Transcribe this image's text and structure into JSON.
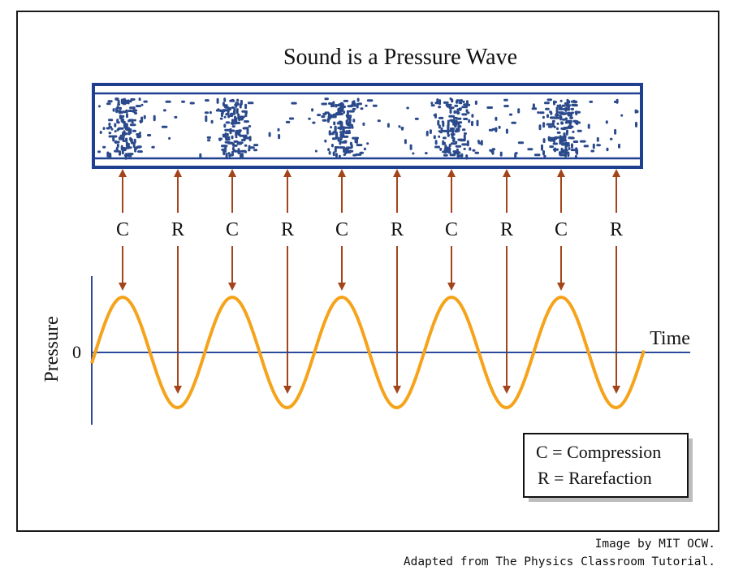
{
  "title": "Sound is a Pressure Wave",
  "markers": [
    "C",
    "R",
    "C",
    "R",
    "C",
    "R",
    "C",
    "R",
    "C",
    "R"
  ],
  "axis": {
    "ylabel": "Pressure",
    "xlabel": "Time",
    "zero_label": "0"
  },
  "legend": {
    "compression": "C = Compression",
    "rarefaction": "R = Rarefaction"
  },
  "credits": {
    "line1": "Image by MIT OCW.",
    "line2": "Adapted from The Physics Classroom Tutorial."
  },
  "colors": {
    "particles": "#2b4a8c",
    "tube": "#1f3f8f",
    "arrows": "#a3441b",
    "wave": "#f5a31a",
    "axis": "#2b4a9c"
  }
}
